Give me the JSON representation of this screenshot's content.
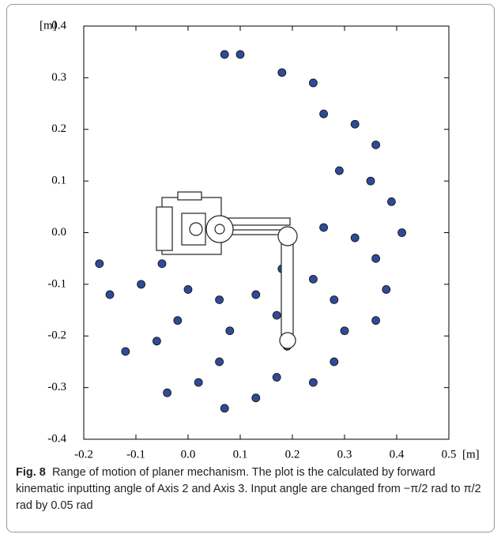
{
  "chart_data": {
    "type": "scatter",
    "x_unit": "[m]",
    "y_unit": "[m]",
    "x": [
      0.07,
      0.1,
      0.18,
      0.26,
      0.29,
      0.26,
      0.18,
      0.24,
      0.32,
      0.35,
      0.32,
      0.24,
      0.13,
      0.36,
      0.39,
      0.36,
      0.28,
      0.17,
      0.06,
      0.41,
      0.38,
      0.3,
      0.19,
      0.08,
      0.0,
      0.36,
      0.28,
      0.17,
      0.06,
      -0.02,
      -0.05,
      0.24,
      0.13,
      0.02,
      -0.06,
      -0.09,
      0.07,
      -0.04,
      -0.12,
      -0.15,
      -0.17
    ],
    "values": [
      0.345,
      0.345,
      0.31,
      0.23,
      0.12,
      0.01,
      -0.07,
      0.29,
      0.21,
      0.1,
      -0.01,
      -0.09,
      -0.12,
      0.17,
      0.06,
      -0.05,
      -0.13,
      -0.16,
      -0.13,
      0.0,
      -0.11,
      -0.19,
      -0.22,
      -0.19,
      -0.11,
      -0.17,
      -0.25,
      -0.28,
      -0.25,
      -0.17,
      -0.06,
      -0.29,
      -0.32,
      -0.29,
      -0.21,
      -0.1,
      -0.34,
      -0.31,
      -0.23,
      -0.12,
      -0.06
    ],
    "color": "#2f4a96",
    "xlim": [
      -0.2,
      0.5
    ],
    "ylim": [
      -0.4,
      0.4
    ],
    "xticks": [
      -0.2,
      -0.1,
      {
        "value": 0,
        "label": "0.0"
      },
      0.1,
      0.2,
      0.3,
      0.4,
      0.5
    ],
    "yticks": [
      -0.4,
      -0.3,
      -0.2,
      -0.1,
      {
        "value": 0,
        "label": "0.0"
      },
      0.1,
      0.2,
      0.3,
      0.4
    ],
    "figure_label": "Fig. 8",
    "caption": "Range of motion of planer mechanism. The plot is the calculated by forward kinematic inputting angle of Axis 2 and Axis 3. Input angle are changed from −π/2 rad to π/2 rad by 0.05 rad"
  }
}
